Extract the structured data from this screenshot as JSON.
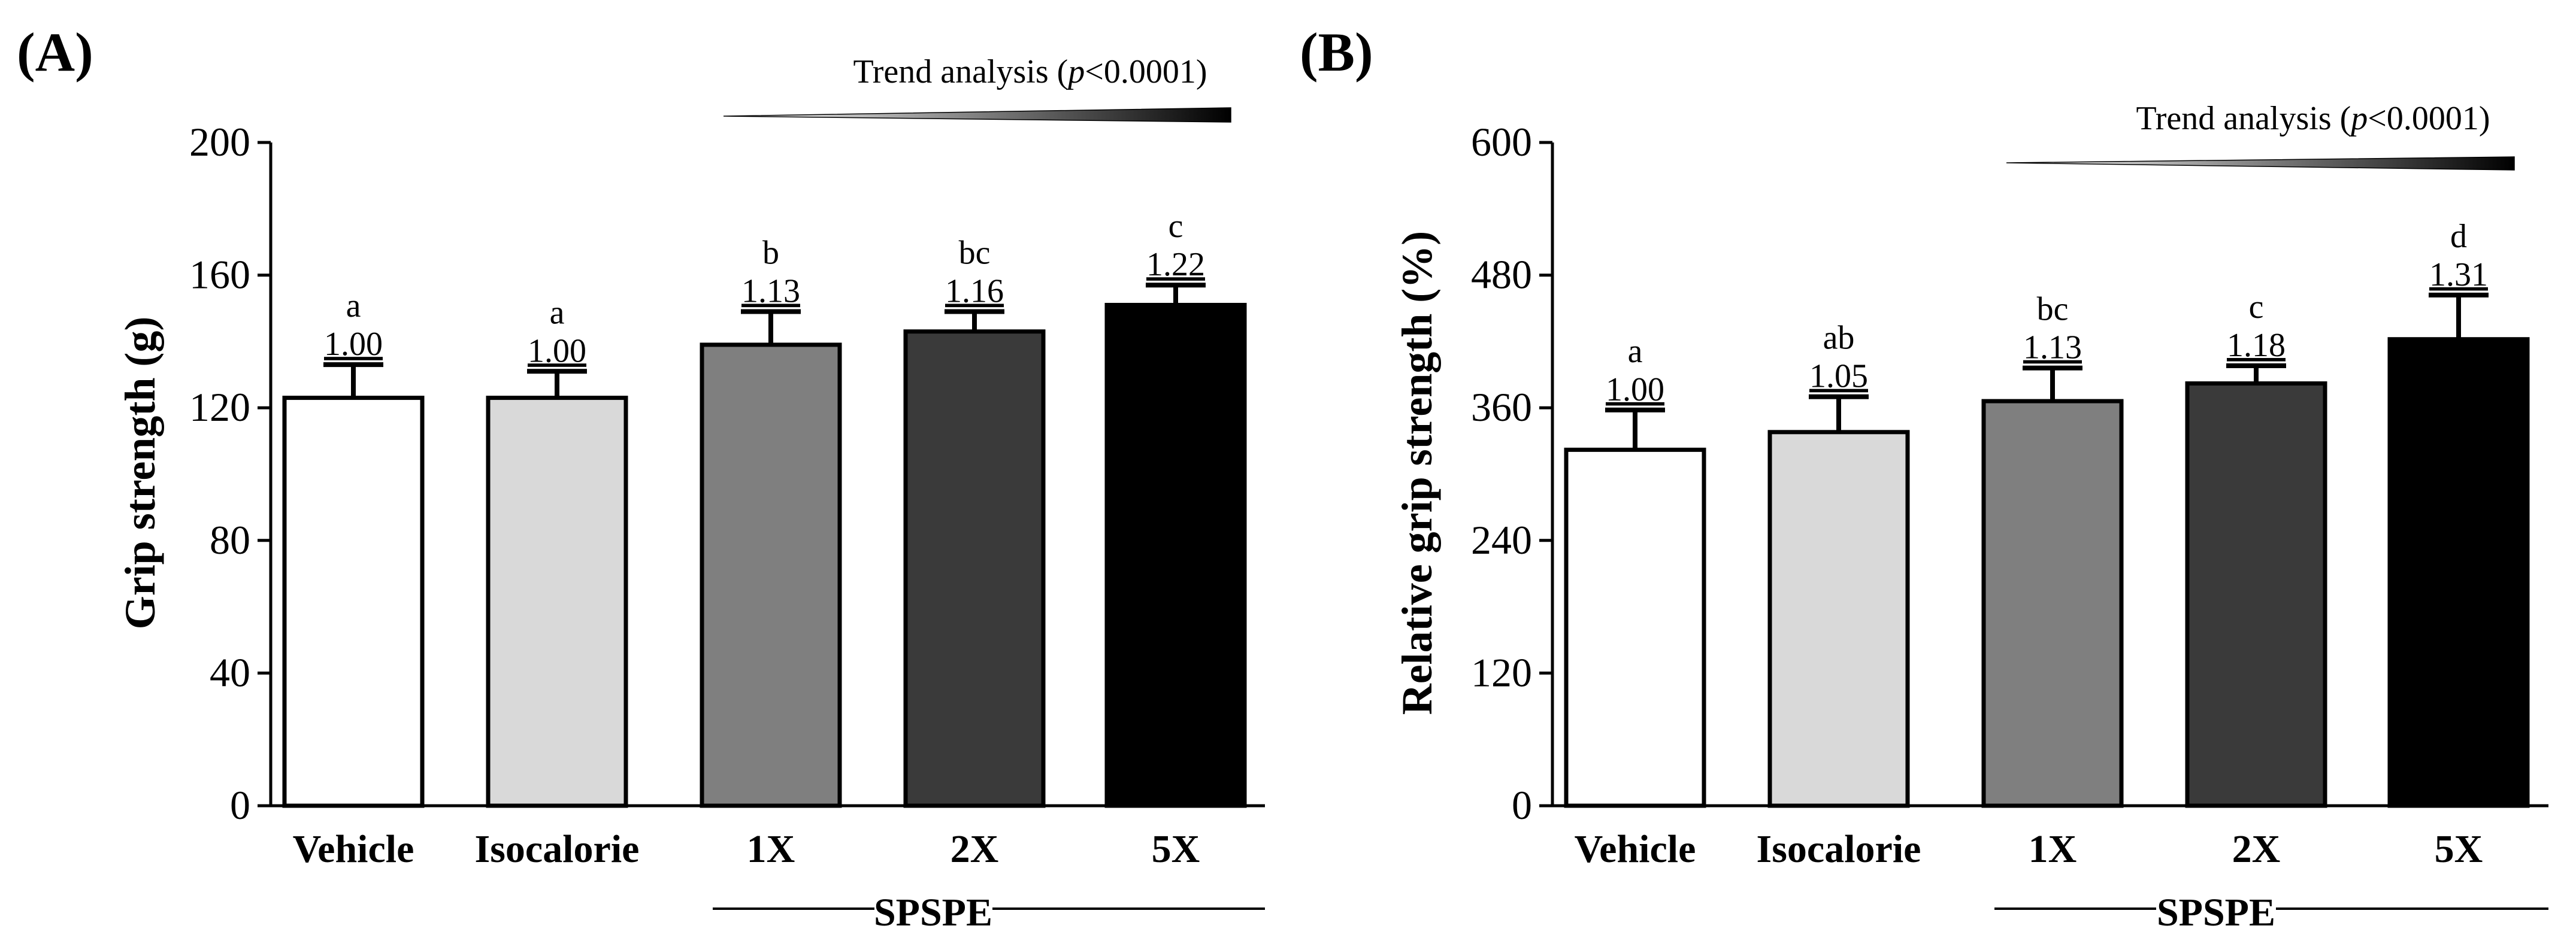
{
  "chart_data": [
    {
      "type": "bar",
      "panel_label": "(A)",
      "ylabel": "Grip strength (g)",
      "ylim": [
        0,
        200
      ],
      "yticks": [
        "0",
        "40",
        "80",
        "120",
        "160",
        "200"
      ],
      "ytick_values": [
        0,
        40,
        80,
        120,
        160,
        200
      ],
      "categories": [
        "Vehicle",
        "Isocalorie",
        "1X",
        "2X",
        "5X"
      ],
      "values": [
        123,
        123,
        139,
        143,
        151
      ],
      "errors": [
        10,
        8,
        10,
        6,
        6
      ],
      "letters": [
        "a",
        "a",
        "b",
        "bc",
        "c"
      ],
      "ratios": [
        "1.00",
        "1.00",
        "1.13",
        "1.16",
        "1.22"
      ],
      "bar_colors": [
        "#ffffff",
        "#d9d9d9",
        "#7f7f7f",
        "#3a3a3a",
        "#000000"
      ],
      "trend": {
        "prefix": "Trend analysis (",
        "italic": "p",
        "suffix": "<0.0001)"
      },
      "group_label": "SPSPE"
    },
    {
      "type": "bar",
      "panel_label": "(B)",
      "ylabel": "Relative grip strength (%)",
      "ylim": [
        0,
        600
      ],
      "yticks": [
        "0",
        "120",
        "240",
        "360",
        "480",
        "600"
      ],
      "ytick_values": [
        0,
        120,
        240,
        360,
        480,
        600
      ],
      "categories": [
        "Vehicle",
        "Isocalorie",
        "1X",
        "2X",
        "5X"
      ],
      "values": [
        322,
        338,
        366,
        382,
        422
      ],
      "errors": [
        36,
        32,
        30,
        16,
        40
      ],
      "letters": [
        "a",
        "ab",
        "bc",
        "c",
        "d"
      ],
      "ratios": [
        "1.00",
        "1.05",
        "1.13",
        "1.18",
        "1.31"
      ],
      "bar_colors": [
        "#ffffff",
        "#d9d9d9",
        "#7f7f7f",
        "#3a3a3a",
        "#000000"
      ],
      "trend": {
        "prefix": "Trend analysis (",
        "italic": "p",
        "suffix": "<0.0001)"
      },
      "group_label": "SPSPE"
    }
  ]
}
